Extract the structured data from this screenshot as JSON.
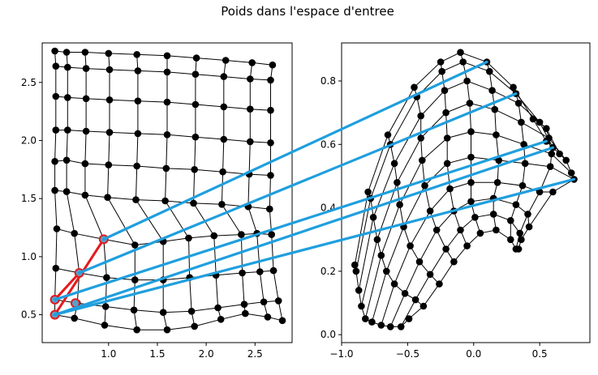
{
  "chart_data": {
    "type": "scatter",
    "title": "Poids dans l'espace d'entree",
    "panels": [
      {
        "name": "left",
        "xlim": [
          0.32,
          2.88
        ],
        "ylim": [
          0.26,
          2.84
        ],
        "xticks": [
          1.0,
          1.5,
          2.0,
          2.5
        ],
        "xtick_labels": [
          "1.0",
          "1.5",
          "2.0",
          "2.5"
        ],
        "yticks": [
          0.5,
          1.0,
          1.5,
          2.0,
          2.5
        ],
        "ytick_labels": [
          "0.5",
          "1.0",
          "1.5",
          "2.0",
          "2.5"
        ],
        "rows": [
          [
            [
              0.45,
              2.77
            ],
            [
              0.57,
              2.76
            ],
            [
              0.76,
              2.76
            ],
            [
              1.0,
              2.75
            ],
            [
              1.29,
              2.74
            ],
            [
              1.6,
              2.73
            ],
            [
              1.9,
              2.71
            ],
            [
              2.2,
              2.69
            ],
            [
              2.47,
              2.67
            ],
            [
              2.68,
              2.65
            ]
          ],
          [
            [
              0.46,
              2.64
            ],
            [
              0.58,
              2.63
            ],
            [
              0.77,
              2.62
            ],
            [
              1.01,
              2.61
            ],
            [
              1.3,
              2.6
            ],
            [
              1.6,
              2.59
            ],
            [
              1.89,
              2.57
            ],
            [
              2.18,
              2.55
            ],
            [
              2.45,
              2.53
            ],
            [
              2.66,
              2.52
            ]
          ],
          [
            [
              0.46,
              2.38
            ],
            [
              0.58,
              2.37
            ],
            [
              0.77,
              2.36
            ],
            [
              1.01,
              2.35
            ],
            [
              1.3,
              2.34
            ],
            [
              1.6,
              2.33
            ],
            [
              1.89,
              2.31
            ],
            [
              2.18,
              2.29
            ],
            [
              2.45,
              2.27
            ],
            [
              2.66,
              2.26
            ]
          ],
          [
            [
              0.46,
              2.09
            ],
            [
              0.58,
              2.09
            ],
            [
              0.77,
              2.08
            ],
            [
              1.01,
              2.07
            ],
            [
              1.3,
              2.06
            ],
            [
              1.6,
              2.05
            ],
            [
              1.89,
              2.03
            ],
            [
              2.18,
              2.01
            ],
            [
              2.45,
              1.99
            ],
            [
              2.66,
              1.98
            ]
          ],
          [
            [
              0.45,
              1.82
            ],
            [
              0.57,
              1.83
            ],
            [
              0.76,
              1.8
            ],
            [
              1.0,
              1.79
            ],
            [
              1.29,
              1.78
            ],
            [
              1.59,
              1.76
            ],
            [
              1.88,
              1.75
            ],
            [
              2.17,
              1.73
            ],
            [
              2.44,
              1.71
            ],
            [
              2.66,
              1.7
            ]
          ],
          [
            [
              0.45,
              1.57
            ],
            [
              0.57,
              1.56
            ],
            [
              0.76,
              1.53
            ],
            [
              0.99,
              1.51
            ],
            [
              1.28,
              1.49
            ],
            [
              1.58,
              1.48
            ],
            [
              1.87,
              1.46
            ],
            [
              2.16,
              1.45
            ],
            [
              2.43,
              1.43
            ],
            [
              2.65,
              1.41
            ]
          ],
          [
            [
              0.47,
              1.24
            ],
            [
              0.65,
              1.2
            ],
            [
              0.95,
              1.15
            ],
            [
              1.27,
              1.1
            ],
            [
              1.56,
              1.13
            ],
            [
              1.82,
              1.16
            ],
            [
              2.08,
              1.18
            ],
            [
              2.36,
              1.19
            ],
            [
              2.52,
              1.2
            ],
            [
              2.67,
              1.19
            ]
          ],
          [
            [
              0.46,
              0.9
            ],
            [
              0.7,
              0.86
            ],
            [
              0.98,
              0.82
            ],
            [
              1.27,
              0.8
            ],
            [
              1.56,
              0.8
            ],
            [
              1.83,
              0.82
            ],
            [
              2.1,
              0.84
            ],
            [
              2.37,
              0.86
            ],
            [
              2.55,
              0.87
            ],
            [
              2.69,
              0.88
            ]
          ],
          [
            [
              0.45,
              0.63
            ],
            [
              0.68,
              0.6
            ],
            [
              0.97,
              0.57
            ],
            [
              1.26,
              0.54
            ],
            [
              1.56,
              0.52
            ],
            [
              1.85,
              0.53
            ],
            [
              2.12,
              0.56
            ],
            [
              2.39,
              0.59
            ],
            [
              2.59,
              0.61
            ],
            [
              2.74,
              0.62
            ]
          ],
          [
            [
              0.45,
              0.5
            ],
            [
              0.65,
              0.47
            ],
            [
              0.96,
              0.41
            ],
            [
              1.29,
              0.37
            ],
            [
              1.6,
              0.37
            ],
            [
              1.88,
              0.4
            ],
            [
              2.15,
              0.46
            ],
            [
              2.4,
              0.51
            ],
            [
              2.63,
              0.48
            ],
            [
              2.78,
              0.45
            ]
          ]
        ],
        "highlight_points": [
          [
            0.45,
            0.5
          ],
          [
            0.45,
            0.63
          ],
          [
            0.66,
            0.6
          ],
          [
            0.7,
            0.86
          ],
          [
            0.95,
            1.15
          ]
        ],
        "highlight_segments": [
          [
            [
              0.45,
              0.5
            ],
            [
              0.95,
              1.15
            ]
          ],
          [
            [
              0.45,
              0.63
            ],
            [
              0.7,
              0.86
            ]
          ]
        ]
      },
      {
        "name": "right",
        "xlim": [
          -1.0,
          0.88
        ],
        "ylim": [
          -0.025,
          0.92
        ],
        "xticks": [
          -1.0,
          -0.5,
          0.0,
          0.5
        ],
        "xtick_labels": [
          "−1.0",
          "−0.5",
          "0.0",
          "0.5"
        ],
        "yticks": [
          0.0,
          0.2,
          0.4,
          0.6,
          0.8
        ],
        "ytick_labels": [
          "0.0",
          "0.2",
          "0.4",
          "0.6",
          "0.8"
        ],
        "rows": [
          [
            [
              -0.9,
              0.22
            ],
            [
              -0.8,
              0.45
            ],
            [
              -0.65,
              0.63
            ],
            [
              -0.45,
              0.78
            ],
            [
              -0.25,
              0.86
            ],
            [
              -0.1,
              0.89
            ],
            [
              0.1,
              0.86
            ],
            [
              0.3,
              0.78
            ],
            [
              0.45,
              0.68
            ],
            [
              0.55,
              0.61
            ]
          ],
          [
            [
              -0.89,
              0.2
            ],
            [
              -0.78,
              0.43
            ],
            [
              -0.63,
              0.6
            ],
            [
              -0.43,
              0.75
            ],
            [
              -0.24,
              0.83
            ],
            [
              -0.08,
              0.86
            ],
            [
              0.12,
              0.83
            ],
            [
              0.32,
              0.76
            ],
            [
              0.5,
              0.67
            ],
            [
              0.6,
              0.59
            ]
          ],
          [
            [
              -0.87,
              0.14
            ],
            [
              -0.76,
              0.37
            ],
            [
              -0.6,
              0.54
            ],
            [
              -0.4,
              0.69
            ],
            [
              -0.22,
              0.77
            ],
            [
              -0.05,
              0.8
            ],
            [
              0.14,
              0.77
            ],
            [
              0.34,
              0.73
            ],
            [
              0.55,
              0.65
            ],
            [
              0.65,
              0.57
            ]
          ],
          [
            [
              -0.85,
              0.09
            ],
            [
              -0.73,
              0.3
            ],
            [
              -0.58,
              0.48
            ],
            [
              -0.4,
              0.62
            ],
            [
              -0.21,
              0.7
            ],
            [
              -0.03,
              0.73
            ],
            [
              0.16,
              0.71
            ],
            [
              0.36,
              0.67
            ],
            [
              0.57,
              0.62
            ],
            [
              0.7,
              0.55
            ]
          ],
          [
            [
              -0.82,
              0.05
            ],
            [
              -0.7,
              0.25
            ],
            [
              -0.56,
              0.41
            ],
            [
              -0.39,
              0.55
            ],
            [
              -0.2,
              0.62
            ],
            [
              -0.02,
              0.64
            ],
            [
              0.17,
              0.63
            ],
            [
              0.38,
              0.6
            ],
            [
              0.59,
              0.57
            ],
            [
              0.74,
              0.51
            ]
          ],
          [
            [
              -0.77,
              0.04
            ],
            [
              -0.66,
              0.2
            ],
            [
              -0.53,
              0.34
            ],
            [
              -0.37,
              0.47
            ],
            [
              -0.2,
              0.54
            ],
            [
              -0.02,
              0.56
            ],
            [
              0.19,
              0.55
            ],
            [
              0.39,
              0.54
            ],
            [
              0.58,
              0.53
            ],
            [
              0.76,
              0.49
            ]
          ],
          [
            [
              -0.7,
              0.03
            ],
            [
              -0.6,
              0.16
            ],
            [
              -0.48,
              0.28
            ],
            [
              -0.33,
              0.39
            ],
            [
              -0.18,
              0.46
            ],
            [
              -0.02,
              0.48
            ],
            [
              0.18,
              0.48
            ],
            [
              0.37,
              0.47
            ],
            [
              0.5,
              0.45
            ],
            [
              0.6,
              0.45
            ]
          ],
          [
            [
              -0.63,
              0.025
            ],
            [
              -0.52,
              0.13
            ],
            [
              -0.41,
              0.23
            ],
            [
              -0.28,
              0.33
            ],
            [
              -0.15,
              0.39
            ],
            [
              -0.02,
              0.42
            ],
            [
              0.15,
              0.43
            ],
            [
              0.32,
              0.41
            ],
            [
              0.41,
              0.38
            ],
            [
              0.42,
              0.34
            ]
          ],
          [
            [
              -0.55,
              0.025
            ],
            [
              -0.44,
              0.11
            ],
            [
              -0.33,
              0.19
            ],
            [
              -0.21,
              0.27
            ],
            [
              -0.1,
              0.33
            ],
            [
              0.01,
              0.37
            ],
            [
              0.15,
              0.38
            ],
            [
              0.28,
              0.36
            ],
            [
              0.35,
              0.32
            ],
            [
              0.36,
              0.3
            ]
          ],
          [
            [
              -0.49,
              0.05
            ],
            [
              -0.38,
              0.09
            ],
            [
              -0.26,
              0.16
            ],
            [
              -0.15,
              0.23
            ],
            [
              -0.05,
              0.28
            ],
            [
              0.05,
              0.32
            ],
            [
              0.17,
              0.33
            ],
            [
              0.28,
              0.3
            ],
            [
              0.32,
              0.27
            ],
            [
              0.34,
              0.27
            ]
          ]
        ]
      }
    ],
    "connectors": [
      {
        "from": [
          0.95,
          1.15
        ],
        "to": [
          0.1,
          0.86
        ]
      },
      {
        "from": [
          0.7,
          0.86
        ],
        "to": [
          0.32,
          0.76
        ]
      },
      {
        "from": [
          0.45,
          0.63
        ],
        "to": [
          0.55,
          0.61
        ]
      },
      {
        "from": [
          0.45,
          0.5
        ],
        "to": [
          0.6,
          0.59
        ]
      },
      {
        "from": [
          0.45,
          0.5
        ],
        "to": [
          0.76,
          0.49
        ]
      }
    ],
    "colors": {
      "node": "#000000",
      "grid_line": "#000000",
      "highlight_line": "#e41a1c",
      "highlight_point": "#5aa0c8",
      "connector": "#1f9fde"
    }
  }
}
